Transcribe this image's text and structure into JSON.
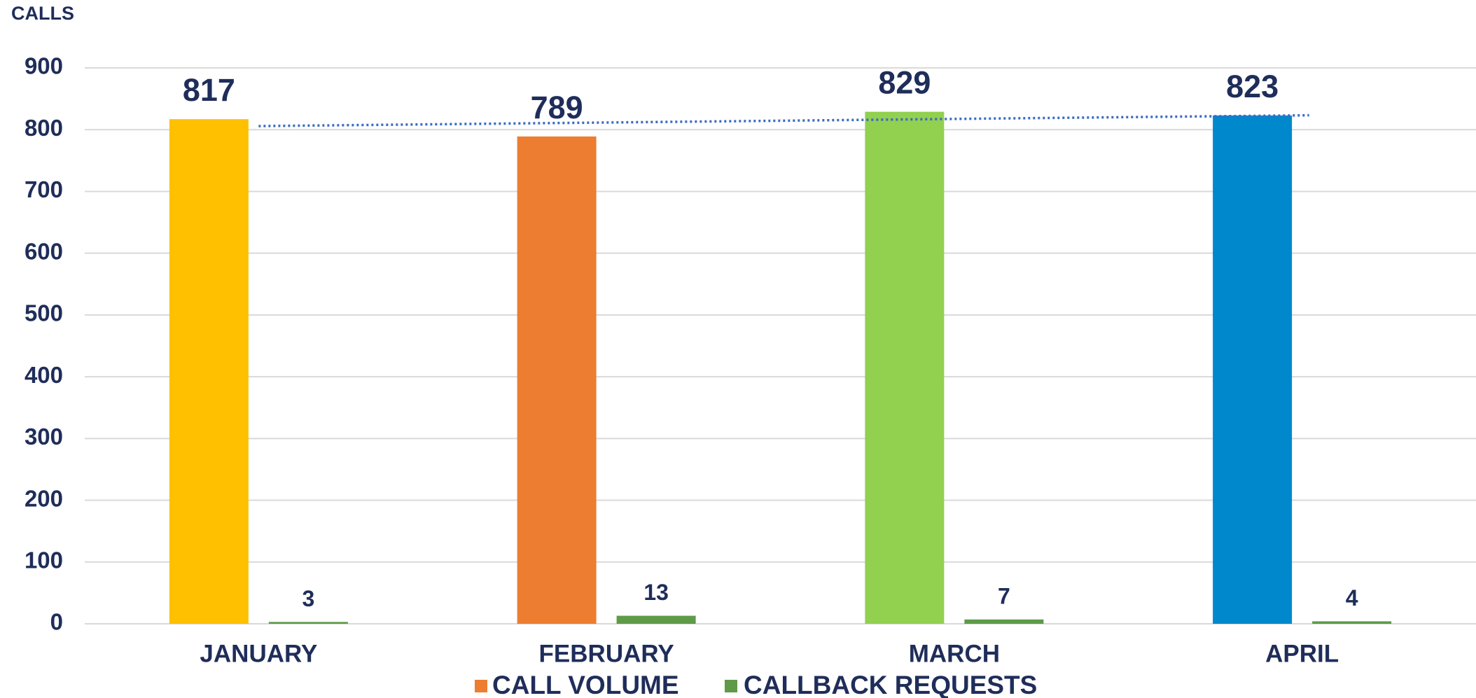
{
  "chart_data": {
    "type": "bar",
    "y_axis_label": "CALLS",
    "categories": [
      "JANUARY",
      "FEBRUARY",
      "MARCH",
      "APRIL"
    ],
    "series": [
      {
        "name": "CALL VOLUME",
        "color": "#ED7D31",
        "point_colors": [
          "#FFC000",
          "#ED7D31",
          "#92D050",
          "#0088CC"
        ],
        "values": [
          817,
          789,
          829,
          823
        ],
        "trendline": "linear",
        "trendline_color": "#3A6BC2"
      },
      {
        "name": "CALLBACK REQUESTS",
        "color": "#5E9A48",
        "values": [
          3,
          13,
          7,
          4
        ]
      }
    ],
    "ylim": [
      0,
      900
    ],
    "yticks": [
      0,
      100,
      200,
      300,
      400,
      500,
      600,
      700,
      800,
      900
    ],
    "grid": true,
    "legend": "bottom"
  }
}
